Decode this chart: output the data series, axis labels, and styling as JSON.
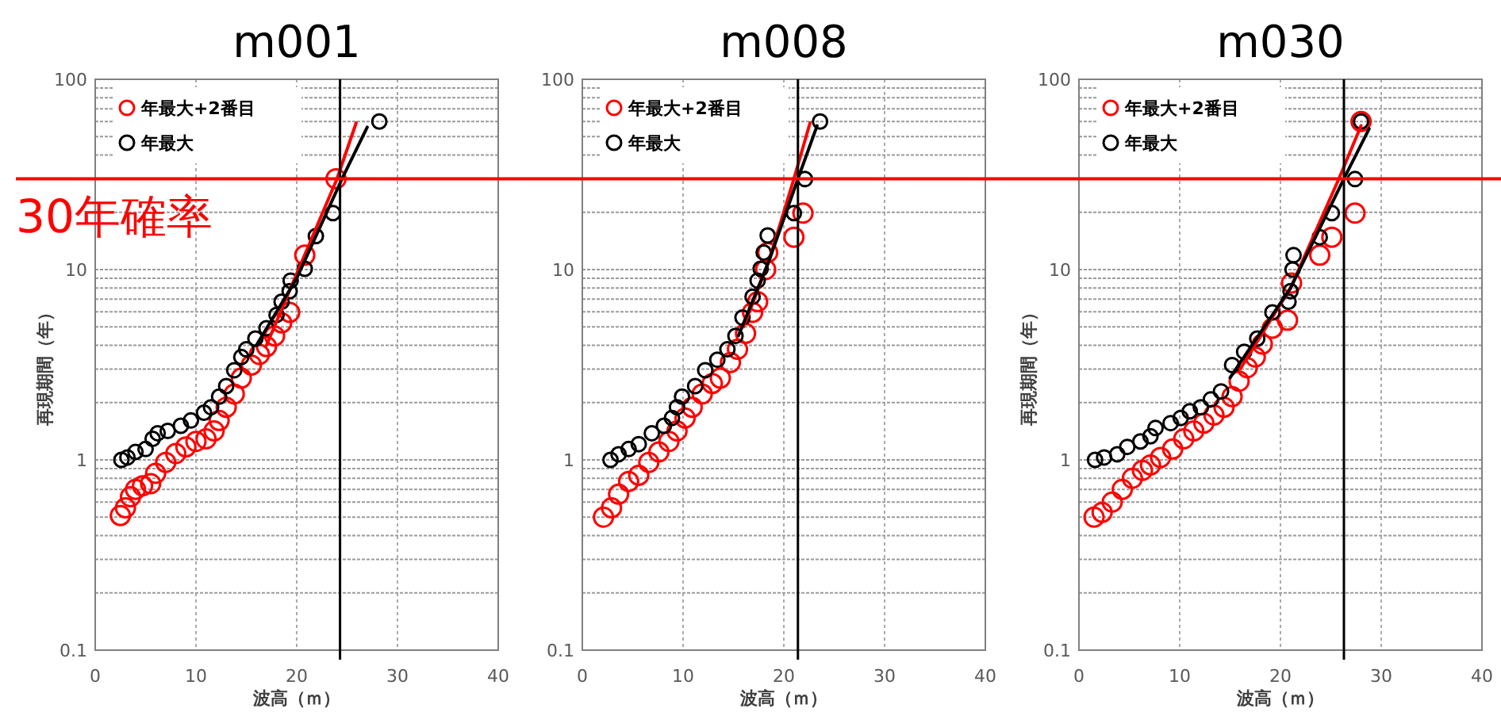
{
  "chart_data": [
    {
      "type": "scatter",
      "title": "m001",
      "xlabel": "波高（ｍ）",
      "ylabel": "再現期間（年）",
      "log": "y",
      "xlim": [
        0,
        40
      ],
      "xticks": [
        0,
        10,
        20,
        30,
        40
      ],
      "ylim": [
        0.1,
        100
      ],
      "yticks": [
        0.1,
        1,
        10,
        100
      ],
      "grid": true,
      "legend": "top left",
      "marker": "circle",
      "ref_lines": [
        {
          "axis": "x",
          "value": 24.3,
          "color": "#000000"
        },
        {
          "axis": "y",
          "value": 30,
          "color": "#ff0000",
          "label": "30年確率"
        }
      ],
      "series": [
        {
          "name": "年最大+2番目",
          "color": "#ff0000",
          "x": [
            2.5,
            3.0,
            3.5,
            4.0,
            4.7,
            5.5,
            6.0,
            7.0,
            8.0,
            9.0,
            10.0,
            11.0,
            11.8,
            12.3,
            13.0,
            13.8,
            14.5,
            15.5,
            16.3,
            17.0,
            17.8,
            18.5,
            19.3,
            20.8,
            23.9
          ],
          "values": [
            0.51,
            0.56,
            0.64,
            0.7,
            0.73,
            0.75,
            0.85,
            0.97,
            1.08,
            1.17,
            1.25,
            1.29,
            1.42,
            1.61,
            1.89,
            2.22,
            2.69,
            3.15,
            3.58,
            3.94,
            4.48,
            5.25,
            5.96,
            11.9,
            30
          ]
        },
        {
          "name": "年最大",
          "color": "#000000",
          "x": [
            2.6,
            3.2,
            4.0,
            5.0,
            5.7,
            6.2,
            7.2,
            8.5,
            9.5,
            10.8,
            11.5,
            12.3,
            13.0,
            13.8,
            14.5,
            15.0,
            15.9,
            17.0,
            18.0,
            18.5,
            19.3,
            19.4,
            20.8,
            21.9,
            23.6,
            28.2
          ],
          "values": [
            1.0,
            1.03,
            1.1,
            1.14,
            1.29,
            1.38,
            1.42,
            1.51,
            1.61,
            1.77,
            1.89,
            2.15,
            2.44,
            2.96,
            3.47,
            3.81,
            4.34,
            4.92,
            5.78,
            6.78,
            7.7,
            8.75,
            10.1,
            15.0,
            19.8,
            60
          ]
        },
        {
          "type": "line",
          "marker": "none",
          "color": "#ff0000",
          "x": [
            17,
            20,
            24,
            25.9
          ],
          "values": [
            4.0,
            9.5,
            30,
            59
          ]
        },
        {
          "type": "line",
          "marker": "none",
          "color": "#000000",
          "x": [
            16,
            20,
            24.5,
            27
          ],
          "values": [
            4.0,
            9,
            30,
            56
          ]
        }
      ]
    },
    {
      "type": "scatter",
      "title": "m008",
      "xlabel": "波高（ｍ）",
      "log": "y",
      "xlim": [
        0,
        40
      ],
      "xticks": [
        0,
        10,
        20,
        30,
        40
      ],
      "ylim": [
        0.1,
        100
      ],
      "yticks": [
        0.1,
        1,
        10,
        100
      ],
      "grid": true,
      "legend": "top left",
      "marker": "circle",
      "ref_lines": [
        {
          "axis": "x",
          "value": 21.4,
          "color": "#000000"
        },
        {
          "axis": "y",
          "value": 30,
          "color": "#ff0000"
        }
      ],
      "series": [
        {
          "name": "年最大+2番目",
          "color": "#ff0000",
          "x": [
            2.1,
            2.9,
            3.6,
            4.6,
            5.6,
            6.6,
            7.6,
            8.6,
            9.4,
            10.2,
            10.9,
            11.9,
            12.9,
            13.7,
            14.7,
            15.4,
            16.2,
            16.9,
            17.4,
            18.2,
            18.4,
            21.0,
            21.9
          ],
          "values": [
            0.5,
            0.56,
            0.66,
            0.77,
            0.83,
            0.97,
            1.1,
            1.25,
            1.42,
            1.66,
            1.89,
            2.22,
            2.52,
            2.69,
            3.25,
            3.81,
            4.62,
            5.96,
            6.78,
            10.0,
            12.3,
            14.8,
            19.8
          ]
        },
        {
          "name": "年最大",
          "color": "#000000",
          "x": [
            2.8,
            3.6,
            4.6,
            5.6,
            6.9,
            8.1,
            8.9,
            9.4,
            9.9,
            11.2,
            12.2,
            13.4,
            14.4,
            15.2,
            15.9,
            16.9,
            17.4,
            17.7,
            18.0,
            18.4,
            21.0,
            22.1,
            23.6
          ],
          "values": [
            1.0,
            1.07,
            1.14,
            1.21,
            1.38,
            1.51,
            1.66,
            1.89,
            2.15,
            2.44,
            2.96,
            3.36,
            3.81,
            4.48,
            5.59,
            7.2,
            8.75,
            10.1,
            12.3,
            15.1,
            19.8,
            29.9,
            60
          ]
        },
        {
          "type": "line",
          "marker": "none",
          "color": "#ff0000",
          "x": [
            16,
            18.5,
            21.0,
            22.6
          ],
          "values": [
            5,
            11,
            30,
            59
          ]
        },
        {
          "type": "line",
          "marker": "none",
          "color": "#000000",
          "x": [
            15.5,
            18.5,
            21.4,
            23.3
          ],
          "values": [
            4.5,
            11,
            30,
            57
          ]
        }
      ]
    },
    {
      "type": "scatter",
      "title": "m030",
      "xlabel": "波高（ｍ）",
      "ylabel": "再現期間（年）",
      "log": "y",
      "xlim": [
        0,
        40
      ],
      "xticks": [
        0,
        10,
        20,
        30,
        40
      ],
      "ylim": [
        0.1,
        100
      ],
      "yticks": [
        0.1,
        1,
        10,
        100
      ],
      "grid": true,
      "legend": "top left",
      "marker": "circle",
      "ref_lines": [
        {
          "axis": "x",
          "value": 26.3,
          "color": "#000000"
        },
        {
          "axis": "y",
          "value": 30,
          "color": "#ff0000"
        }
      ],
      "series": [
        {
          "name": "年最大+2番目",
          "color": "#ff0000",
          "x": [
            1.5,
            2.3,
            3.3,
            4.3,
            5.3,
            6.3,
            7.1,
            8.1,
            9.3,
            10.4,
            11.4,
            12.4,
            13.4,
            14.4,
            15.2,
            15.9,
            16.7,
            17.5,
            18.2,
            19.2,
            20.7,
            21.1,
            23.9,
            25.1,
            27.4,
            28.0
          ],
          "values": [
            0.5,
            0.53,
            0.6,
            0.7,
            0.8,
            0.88,
            0.94,
            1.03,
            1.14,
            1.29,
            1.42,
            1.56,
            1.72,
            1.89,
            2.15,
            2.59,
            3.05,
            3.47,
            4.06,
            4.92,
            5.42,
            8.5,
            11.9,
            14.8,
            19.8,
            60
          ]
        },
        {
          "name": "年最大",
          "color": "#000000",
          "x": [
            1.6,
            2.5,
            3.8,
            4.8,
            6.1,
            7.1,
            7.6,
            9.1,
            10.1,
            11.0,
            12.1,
            13.1,
            14.1,
            15.2,
            16.4,
            17.7,
            19.2,
            20.8,
            21.0,
            21.2,
            21.3,
            23.9,
            25.1,
            27.4,
            28.0
          ],
          "values": [
            1.0,
            1.03,
            1.07,
            1.17,
            1.25,
            1.33,
            1.47,
            1.56,
            1.66,
            1.8,
            1.89,
            2.08,
            2.29,
            3.15,
            3.7,
            4.34,
            5.96,
            6.78,
            7.7,
            10.0,
            11.9,
            14.8,
            19.8,
            29.9,
            60
          ]
        },
        {
          "type": "line",
          "marker": "none",
          "color": "#ff0000",
          "x": [
            16,
            21,
            25.8,
            28
          ],
          "values": [
            3.0,
            8,
            30,
            57
          ]
        },
        {
          "type": "line",
          "marker": "none",
          "color": "#000000",
          "x": [
            15,
            21,
            26.3,
            28.8
          ],
          "values": [
            2.7,
            8,
            30,
            55
          ]
        }
      ]
    }
  ]
}
